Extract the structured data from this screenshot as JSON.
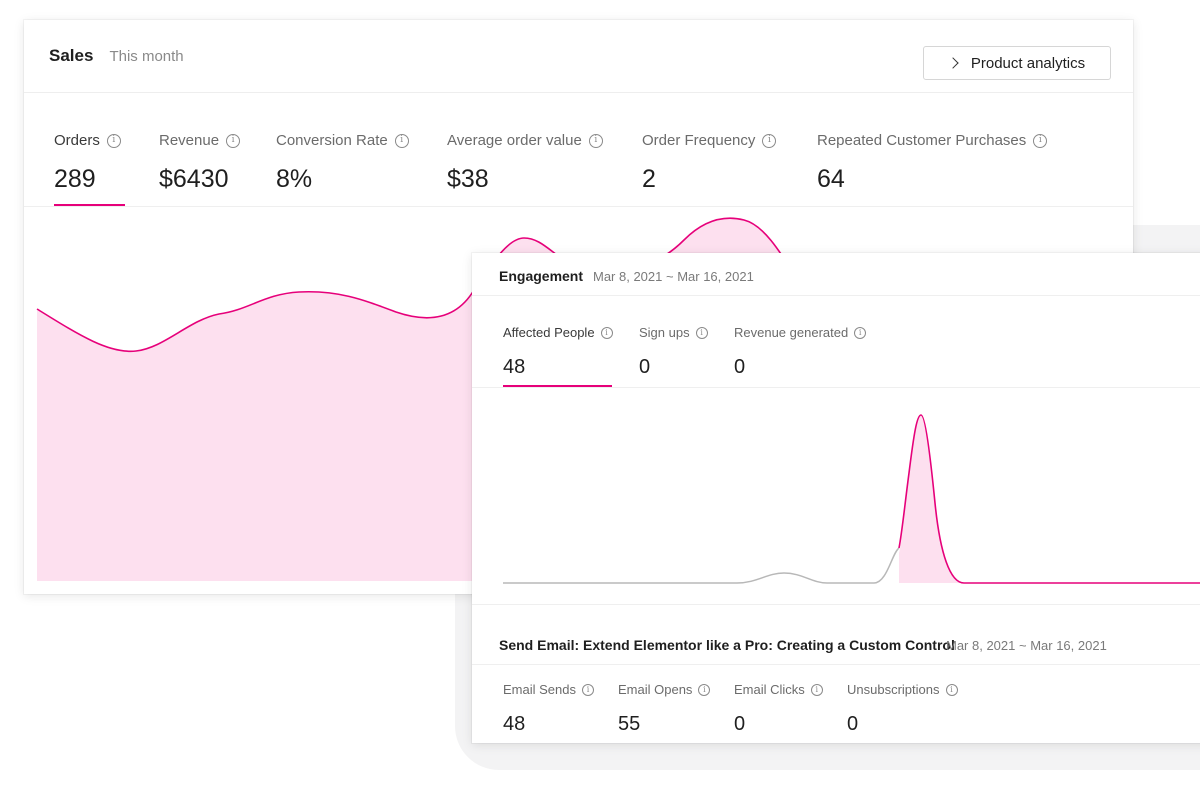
{
  "sales": {
    "title": "Sales",
    "period": "This month",
    "button_label": "Product analytics",
    "metrics": [
      {
        "label": "Orders",
        "value": "289"
      },
      {
        "label": "Revenue",
        "value": "$6430"
      },
      {
        "label": "Conversion Rate",
        "value": "8%"
      },
      {
        "label": "Average order value",
        "value": "$38"
      },
      {
        "label": "Order Frequency",
        "value": "2"
      },
      {
        "label": "Repeated Customer Purchases",
        "value": "64"
      }
    ],
    "active_metric": "Orders"
  },
  "engagement": {
    "title": "Engagement",
    "date_range": "Mar 8, 2021 ~ Mar 16, 2021",
    "metrics": [
      {
        "label": "Affected People",
        "value": "48"
      },
      {
        "label": "Sign ups",
        "value": "0"
      },
      {
        "label": "Revenue generated",
        "value": "0"
      }
    ],
    "active_metric": "Affected People"
  },
  "email": {
    "title": "Send Email: Extend Elementor like a Pro: Creating a Custom Control",
    "date_range": "Mar 8, 2021 ~ Mar 16, 2021",
    "metrics": [
      {
        "label": "Email Sends",
        "value": "48"
      },
      {
        "label": "Email Opens",
        "value": "55"
      },
      {
        "label": "Email Clicks",
        "value": "0"
      },
      {
        "label": "Unsubscriptions",
        "value": "0"
      }
    ]
  },
  "icons": {
    "info": "info-icon",
    "chevron": "chevron-right-icon"
  },
  "colors": {
    "accent": "#e6007a",
    "area_fill": "#fde0ef",
    "muted_line": "#b8b8b8"
  }
}
